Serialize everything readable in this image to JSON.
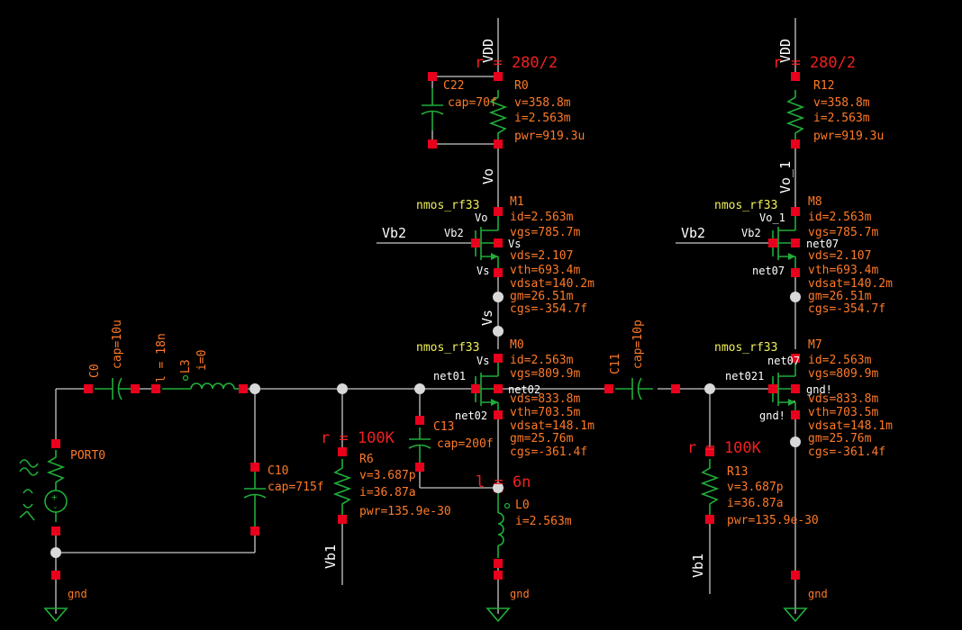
{
  "nets": {
    "vdd": "VDD",
    "vo": "Vo",
    "vo1": "Vo_1",
    "vs": "Vs",
    "vb2": "Vb2",
    "vb1": "Vb1",
    "net01": "net01",
    "net02": "net02",
    "net07": "net07",
    "net021": "net021",
    "gnd": "gnd",
    "gnd_bang": "gnd!"
  },
  "components": {
    "r0": {
      "name": "R0",
      "r": "r = 280/2",
      "v": "v=358.8m",
      "i": "i=2.563m",
      "pwr": "pwr=919.3u"
    },
    "r12": {
      "name": "R12",
      "r": "r = 280/2",
      "v": "v=358.8m",
      "i": "i=2.563m",
      "pwr": "pwr=919.3u"
    },
    "c22": {
      "name": "C22",
      "cap": "cap=70f"
    },
    "m1": {
      "model": "nmos_rf33",
      "name": "M1",
      "id": "id=2.563m",
      "vgs": "vgs=785.7m",
      "vds": "vds=2.107",
      "vth": "vth=693.4m",
      "vdsat": "vdsat=140.2m",
      "gm": "gm=26.51m",
      "cgs": "cgs=-354.7f"
    },
    "m8": {
      "model": "nmos_rf33",
      "name": "M8",
      "id": "id=2.563m",
      "vgs": "vgs=785.7m",
      "vds": "vds=2.107",
      "vth": "vth=693.4m",
      "vdsat": "vdsat=140.2m",
      "gm": "gm=26.51m",
      "cgs": "cgs=-354.7f"
    },
    "m0": {
      "model": "nmos_rf33",
      "name": "M0",
      "id": "id=2.563m",
      "vgs": "vgs=809.9m",
      "vds": "vds=833.8m",
      "vth": "vth=703.5m",
      "vdsat": "vdsat=148.1m",
      "gm": "gm=25.76m",
      "cgs": "cgs=-361.4f"
    },
    "m7": {
      "model": "nmos_rf33",
      "name": "M7",
      "id": "id=2.563m",
      "vgs": "vgs=809.9m",
      "vds": "vds=833.8m",
      "vth": "vth=703.5m",
      "vdsat": "vdsat=148.1m",
      "gm": "gm=25.76m",
      "cgs": "cgs=-361.4f"
    },
    "c0": {
      "name": "C0",
      "cap": "cap=10u"
    },
    "l3": {
      "name": "L3",
      "l": "l = 18n",
      "i": "i=0"
    },
    "port0": {
      "name": "PORT0"
    },
    "c10": {
      "name": "C10",
      "cap": "cap=715f"
    },
    "r6": {
      "name": "R6",
      "r": "r = 100K",
      "v": "v=3.687p",
      "i": "i=36.87a",
      "pwr": "pwr=135.9e-30"
    },
    "r13": {
      "name": "R13",
      "r": "r = 100K",
      "v": "v=3.687p",
      "i": "i=36.87a",
      "pwr": "pwr=135.9e-30"
    },
    "c13": {
      "name": "C13",
      "cap": "cap=200f"
    },
    "l0": {
      "name": "L0",
      "l": "l = 6n",
      "i": "i=2.563m"
    },
    "c11": {
      "name": "C11",
      "cap": "cap=10p"
    }
  }
}
